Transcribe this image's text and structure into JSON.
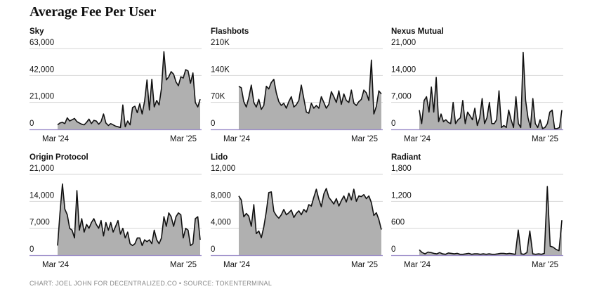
{
  "title": "Average Fee Per User",
  "footer": "CHART: JOEL JOHN FOR DECENTRALIZED.CO • SOURCE: TOKENTERMINAL",
  "chart_data": [
    {
      "type": "area",
      "title": "Sky",
      "yticks": [
        "0",
        "21,000",
        "42,000",
        "63,000"
      ],
      "xticks": [
        "Mar '24",
        "Mar '25"
      ],
      "ylim": [
        0,
        63000
      ],
      "x_start": "2024-02",
      "x_end": "2025-04",
      "values": [
        3500,
        5000,
        5500,
        4500,
        9000,
        6500,
        7500,
        8500,
        6000,
        5000,
        4000,
        3500,
        5500,
        8000,
        4500,
        7000,
        6500,
        4000,
        6000,
        12000,
        5000,
        3000,
        4500,
        3500,
        2500,
        2000,
        1500,
        19000,
        2000,
        6500,
        3500,
        17000,
        18000,
        13000,
        20000,
        12000,
        22000,
        38500,
        15000,
        39000,
        17500,
        22500,
        19000,
        32000,
        60500,
        38500,
        41000,
        45000,
        43000,
        37000,
        34000,
        41000,
        40000,
        46500,
        45500,
        36000,
        44000,
        21000,
        17500,
        23500
      ]
    },
    {
      "type": "area",
      "title": "Flashbots",
      "yticks": [
        "0",
        "70K",
        "140K",
        "210K"
      ],
      "xticks": [
        "Mar '24",
        "Mar '25"
      ],
      "ylim": [
        0,
        210000
      ],
      "x_start": "2024-02",
      "x_end": "2025-04",
      "values": [
        112000,
        108000,
        72000,
        58000,
        82000,
        115000,
        70000,
        58000,
        78000,
        52000,
        62000,
        112000,
        105000,
        122000,
        130000,
        95000,
        72000,
        62000,
        68000,
        55000,
        72000,
        85000,
        58000,
        64000,
        75000,
        115000,
        80000,
        45000,
        42000,
        68000,
        55000,
        62000,
        55000,
        85000,
        70000,
        55000,
        65000,
        98000,
        85000,
        70000,
        100000,
        65000,
        92000,
        75000,
        70000,
        102000,
        68000,
        62000,
        72000,
        78000,
        102000,
        95000,
        75000,
        180000,
        40000,
        60000,
        100000,
        92000
      ]
    },
    {
      "type": "area",
      "title": "Nexus Mutual",
      "yticks": [
        "0",
        "7,000",
        "14,000",
        "21,000"
      ],
      "xticks": [
        "Mar '24",
        "Mar '25"
      ],
      "ylim": [
        0,
        21000
      ],
      "x_start": "2024-02",
      "x_end": "2025-04",
      "values": [
        5000,
        1500,
        7500,
        8500,
        4500,
        11000,
        4500,
        13500,
        2000,
        4000,
        2000,
        2500,
        1800,
        1500,
        7000,
        1500,
        2500,
        3000,
        7500,
        1500,
        4500,
        3500,
        2500,
        5500,
        1000,
        3000,
        8000,
        1500,
        3000,
        7000,
        1500,
        1500,
        2500,
        10000,
        500,
        1000,
        500,
        5000,
        2500,
        500,
        8500,
        1500,
        500,
        20000,
        7500,
        3000,
        500,
        8000,
        1500,
        500,
        2500,
        200,
        500,
        1500,
        4500,
        5000,
        200,
        200,
        500,
        5000
      ]
    },
    {
      "type": "area",
      "title": "Origin Protocol",
      "yticks": [
        "0",
        "7,000",
        "14,000",
        "21,000"
      ],
      "xticks": [
        "Mar '24",
        "Mar '25"
      ],
      "ylim": [
        0,
        21000
      ],
      "x_start": "2024-02",
      "x_end": "2025-04",
      "values": [
        2500,
        11000,
        18500,
        12000,
        10500,
        7000,
        6500,
        4500,
        16800,
        6500,
        9500,
        6000,
        8000,
        7000,
        8500,
        9500,
        8000,
        7000,
        9000,
        5000,
        8500,
        6500,
        8500,
        6000,
        7500,
        9000,
        5500,
        7000,
        4500,
        6000,
        3000,
        2500,
        3000,
        4500,
        4500,
        2500,
        4000,
        3500,
        4000,
        3000,
        6500,
        4000,
        3000,
        4500,
        10000,
        7500,
        11000,
        10000,
        7500,
        10000,
        11000,
        10500,
        4500,
        7000,
        6500,
        2500,
        3000,
        9500,
        10000,
        4000
      ]
    },
    {
      "type": "area",
      "title": "Lido",
      "yticks": [
        "0",
        "4,000",
        "8,000",
        "12,000"
      ],
      "xticks": [
        "Mar '24",
        "Mar '25"
      ],
      "ylim": [
        0,
        12000
      ],
      "x_start": "2024-02",
      "x_end": "2025-04",
      "values": [
        8800,
        8200,
        5700,
        6200,
        5800,
        4300,
        7500,
        3200,
        3600,
        2600,
        4200,
        6500,
        9300,
        9400,
        6500,
        5900,
        5500,
        6000,
        6800,
        6000,
        6300,
        6700,
        5600,
        6200,
        6600,
        6000,
        6800,
        6400,
        7500,
        7300,
        8600,
        9800,
        8300,
        7200,
        9100,
        9900,
        8600,
        8100,
        7600,
        8400,
        7300,
        8100,
        8800,
        7900,
        9200,
        8200,
        9800,
        8000,
        8800,
        8700,
        9000,
        8400,
        8800,
        7800,
        5900,
        6300,
        5300,
        3800
      ]
    },
    {
      "type": "area",
      "title": "Radiant",
      "yticks": [
        "0",
        "600",
        "1,200",
        "1,800"
      ],
      "xticks": [
        "Mar '24",
        "Mar '25"
      ],
      "ylim": [
        0,
        1800
      ],
      "x_start": "2024-02",
      "x_end": "2025-04",
      "values": [
        120,
        60,
        30,
        70,
        60,
        40,
        30,
        60,
        30,
        20,
        50,
        40,
        30,
        40,
        20,
        20,
        30,
        40,
        20,
        30,
        30,
        20,
        30,
        20,
        30,
        20,
        20,
        30,
        40,
        40,
        30,
        40,
        30,
        20,
        560,
        30,
        20,
        60,
        540,
        30,
        20,
        30,
        20,
        40,
        1530,
        200,
        180,
        130,
        100,
        780
      ]
    }
  ]
}
